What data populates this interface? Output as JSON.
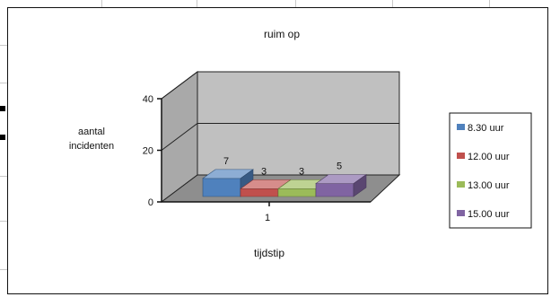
{
  "chart_data": {
    "type": "bar",
    "title": "ruim op",
    "xlabel": "tijdstip",
    "ylabel_lines": [
      "aantal",
      "incidenten"
    ],
    "categories": [
      "1"
    ],
    "ylim": [
      0,
      40
    ],
    "yticks": [
      "0",
      "20",
      "40"
    ],
    "grid": true,
    "legend_position": "right",
    "series": [
      {
        "name": "8.30 uur",
        "values": [
          7
        ],
        "color": "#4f81bd"
      },
      {
        "name": "12.00 uur",
        "values": [
          3
        ],
        "color": "#c0504d"
      },
      {
        "name": "13.00 uur",
        "values": [
          3
        ],
        "color": "#9bbb59"
      },
      {
        "name": "15.00 uur",
        "values": [
          5
        ],
        "color": "#8064a2"
      }
    ],
    "data_labels": [
      "7",
      "3",
      "3",
      "5"
    ]
  }
}
